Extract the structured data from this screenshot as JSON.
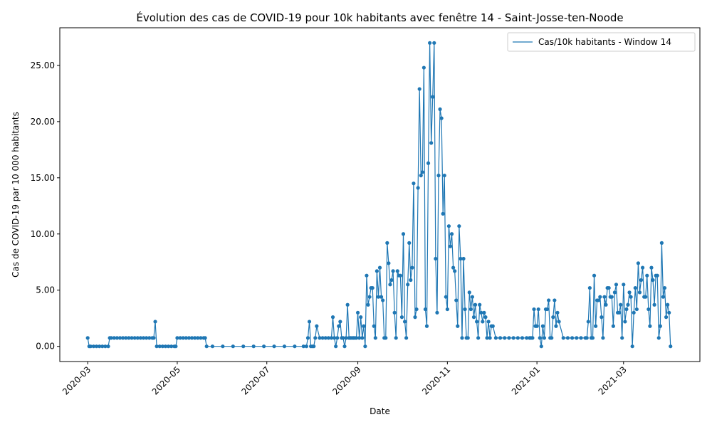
{
  "chart_data": {
    "type": "line",
    "title": "Évolution des cas de COVID-19 pour 10k habitants avec fenêtre 14 - Saint-Josse-ten-Noode",
    "xlabel": "Date",
    "ylabel": "Cas de COVID-19 par 10 000 habitants",
    "xlim": [
      "2020-02-11",
      "2021-04-22"
    ],
    "ylim": [
      -1.35,
      28.35
    ],
    "x_ticks": [
      "2020-03-01",
      "2020-05-01",
      "2020-07-01",
      "2020-09-01",
      "2020-11-01",
      "2021-01-01",
      "2021-03-01"
    ],
    "x_tick_labels": [
      "2020-03",
      "2020-05",
      "2020-07",
      "2020-09",
      "2020-11",
      "2021-01",
      "2021-03"
    ],
    "y_ticks": [
      0,
      5,
      10,
      15,
      20,
      25
    ],
    "y_tick_labels": [
      "0.00",
      "5.00",
      "10.00",
      "15.00",
      "20.00",
      "25.00"
    ],
    "legend_position": "top-right",
    "grid": false,
    "colors": {
      "series": "#1f77b4"
    },
    "series": [
      {
        "name": "Cas/10k habitants - Window 14",
        "x": [
          "2020-03-01",
          "2020-03-02",
          "2020-03-03",
          "2020-03-05",
          "2020-03-07",
          "2020-03-09",
          "2020-03-11",
          "2020-03-13",
          "2020-03-15",
          "2020-03-16",
          "2020-03-17",
          "2020-03-19",
          "2020-03-21",
          "2020-03-23",
          "2020-03-25",
          "2020-03-27",
          "2020-03-29",
          "2020-03-31",
          "2020-04-02",
          "2020-04-04",
          "2020-04-06",
          "2020-04-08",
          "2020-04-10",
          "2020-04-12",
          "2020-04-14",
          "2020-04-15",
          "2020-04-16",
          "2020-04-17",
          "2020-04-19",
          "2020-04-21",
          "2020-04-23",
          "2020-04-25",
          "2020-04-27",
          "2020-04-29",
          "2020-04-30",
          "2020-05-01",
          "2020-05-03",
          "2020-05-05",
          "2020-05-07",
          "2020-05-09",
          "2020-05-11",
          "2020-05-13",
          "2020-05-15",
          "2020-05-17",
          "2020-05-19",
          "2020-05-20",
          "2020-05-21",
          "2020-05-25",
          "2020-06-01",
          "2020-06-08",
          "2020-06-15",
          "2020-06-22",
          "2020-06-29",
          "2020-07-06",
          "2020-07-13",
          "2020-07-20",
          "2020-07-26",
          "2020-07-28",
          "2020-07-29",
          "2020-07-30",
          "2020-07-31",
          "2020-08-01",
          "2020-08-02",
          "2020-08-03",
          "2020-08-04",
          "2020-08-06",
          "2020-08-08",
          "2020-08-10",
          "2020-08-12",
          "2020-08-14",
          "2020-08-15",
          "2020-08-16",
          "2020-08-17",
          "2020-08-18",
          "2020-08-19",
          "2020-08-20",
          "2020-08-21",
          "2020-08-22",
          "2020-08-23",
          "2020-08-24",
          "2020-08-25",
          "2020-08-26",
          "2020-08-27",
          "2020-08-28",
          "2020-08-29",
          "2020-08-30",
          "2020-08-31",
          "2020-09-01",
          "2020-09-02",
          "2020-09-03",
          "2020-09-04",
          "2020-09-05",
          "2020-09-06",
          "2020-09-07",
          "2020-09-08",
          "2020-09-09",
          "2020-09-10",
          "2020-09-11",
          "2020-09-12",
          "2020-09-13",
          "2020-09-14",
          "2020-09-15",
          "2020-09-16",
          "2020-09-17",
          "2020-09-18",
          "2020-09-19",
          "2020-09-20",
          "2020-09-21",
          "2020-09-22",
          "2020-09-23",
          "2020-09-24",
          "2020-09-25",
          "2020-09-26",
          "2020-09-27",
          "2020-09-28",
          "2020-09-29",
          "2020-09-30",
          "2020-10-01",
          "2020-10-02",
          "2020-10-03",
          "2020-10-04",
          "2020-10-05",
          "2020-10-06",
          "2020-10-07",
          "2020-10-08",
          "2020-10-09",
          "2020-10-10",
          "2020-10-11",
          "2020-10-12",
          "2020-10-13",
          "2020-10-14",
          "2020-10-15",
          "2020-10-16",
          "2020-10-17",
          "2020-10-18",
          "2020-10-19",
          "2020-10-20",
          "2020-10-21",
          "2020-10-22",
          "2020-10-23",
          "2020-10-24",
          "2020-10-25",
          "2020-10-26",
          "2020-10-27",
          "2020-10-28",
          "2020-10-29",
          "2020-10-30",
          "2020-10-31",
          "2020-11-01",
          "2020-11-02",
          "2020-11-03",
          "2020-11-04",
          "2020-11-05",
          "2020-11-06",
          "2020-11-07",
          "2020-11-08",
          "2020-11-09",
          "2020-11-10",
          "2020-11-11",
          "2020-11-12",
          "2020-11-13",
          "2020-11-14",
          "2020-11-15",
          "2020-11-16",
          "2020-11-17",
          "2020-11-18",
          "2020-11-19",
          "2020-11-20",
          "2020-11-21",
          "2020-11-22",
          "2020-11-23",
          "2020-11-24",
          "2020-11-25",
          "2020-11-26",
          "2020-11-27",
          "2020-11-28",
          "2020-11-29",
          "2020-11-30",
          "2020-12-01",
          "2020-12-02",
          "2020-12-04",
          "2020-12-07",
          "2020-12-10",
          "2020-12-13",
          "2020-12-16",
          "2020-12-19",
          "2020-12-22",
          "2020-12-25",
          "2020-12-27",
          "2020-12-28",
          "2020-12-29",
          "2020-12-30",
          "2020-12-31",
          "2021-01-01",
          "2021-01-02",
          "2021-01-03",
          "2021-01-04",
          "2021-01-05",
          "2021-01-06",
          "2021-01-07",
          "2021-01-08",
          "2021-01-09",
          "2021-01-10",
          "2021-01-11",
          "2021-01-12",
          "2021-01-13",
          "2021-01-14",
          "2021-01-15",
          "2021-01-16",
          "2021-01-19",
          "2021-01-22",
          "2021-01-25",
          "2021-01-28",
          "2021-01-31",
          "2021-02-03",
          "2021-02-04",
          "2021-02-05",
          "2021-02-06",
          "2021-02-07",
          "2021-02-08",
          "2021-02-09",
          "2021-02-10",
          "2021-02-11",
          "2021-02-12",
          "2021-02-13",
          "2021-02-14",
          "2021-02-15",
          "2021-02-16",
          "2021-02-17",
          "2021-02-18",
          "2021-02-19",
          "2021-02-20",
          "2021-02-21",
          "2021-02-22",
          "2021-02-23",
          "2021-02-24",
          "2021-02-25",
          "2021-02-26",
          "2021-02-27",
          "2021-02-28",
          "2021-03-01",
          "2021-03-02",
          "2021-03-03",
          "2021-03-04",
          "2021-03-05",
          "2021-03-06",
          "2021-03-07",
          "2021-03-08",
          "2021-03-09",
          "2021-03-10",
          "2021-03-11",
          "2021-03-12",
          "2021-03-13",
          "2021-03-14",
          "2021-03-15",
          "2021-03-16",
          "2021-03-17",
          "2021-03-18",
          "2021-03-19",
          "2021-03-20",
          "2021-03-21",
          "2021-03-22",
          "2021-03-23",
          "2021-03-24",
          "2021-03-25",
          "2021-03-26",
          "2021-03-27",
          "2021-03-28",
          "2021-03-29",
          "2021-03-30",
          "2021-03-31",
          "2021-04-01",
          "2021-04-02"
        ],
        "values": [
          0.75,
          0,
          0,
          0,
          0,
          0,
          0,
          0,
          0,
          0.75,
          0.75,
          0.75,
          0.75,
          0.75,
          0.75,
          0.75,
          0.75,
          0.75,
          0.75,
          0.75,
          0.75,
          0.75,
          0.75,
          0.75,
          0.75,
          0.75,
          2.2,
          0,
          0,
          0,
          0,
          0,
          0,
          0,
          0,
          0.75,
          0.75,
          0.75,
          0.75,
          0.75,
          0.75,
          0.75,
          0.75,
          0.75,
          0.75,
          0.75,
          0,
          0,
          0,
          0,
          0,
          0,
          0,
          0,
          0,
          0,
          0,
          0,
          0.75,
          2.2,
          0,
          0,
          0,
          0.75,
          1.8,
          0.75,
          0.75,
          0.75,
          0.75,
          0.75,
          2.6,
          0.75,
          0,
          0.75,
          1.8,
          2.2,
          0.75,
          0.75,
          0,
          0.75,
          3.7,
          0.75,
          0.75,
          0.75,
          0.75,
          0.75,
          0.75,
          3,
          0.75,
          2.6,
          0.75,
          1.8,
          0,
          6.3,
          3.7,
          4.4,
          5.2,
          5.2,
          1.8,
          0.75,
          6.7,
          4.4,
          7,
          4.4,
          4.1,
          0.75,
          0.75,
          9.2,
          7.4,
          5.5,
          5.9,
          6.7,
          3,
          0.75,
          6.7,
          6.3,
          6.3,
          2.6,
          10,
          2.2,
          0.75,
          5.5,
          9.2,
          5.9,
          7,
          14.5,
          2.6,
          3.3,
          14.1,
          22.9,
          15.2,
          15.5,
          24.8,
          3.3,
          1.8,
          16.3,
          27,
          18.1,
          22.2,
          27,
          7.8,
          3,
          15.2,
          21.1,
          20.3,
          11.8,
          15.2,
          4.4,
          3.3,
          10.7,
          8.9,
          10,
          7,
          6.7,
          4.1,
          1.8,
          10.7,
          7.8,
          0.75,
          7.8,
          3.3,
          0.75,
          0.75,
          4.8,
          3.3,
          4.4,
          2.6,
          3.7,
          2.2,
          0.75,
          3.7,
          3,
          2.2,
          3,
          2.6,
          0.75,
          2.2,
          0.75,
          1.8,
          1.8,
          0.75,
          0.75,
          0.75,
          0.75,
          0.75,
          0.75,
          0.75,
          0.75,
          0.75,
          0.75,
          0.75,
          3.3,
          1.8,
          1.8,
          3.3,
          0.75,
          0,
          1.8,
          0.75,
          3.3,
          3.3,
          4.1,
          0.75,
          0.75,
          2.6,
          4.1,
          1.8,
          3,
          2.2,
          0.75,
          0.75,
          0.75,
          0.75,
          0.75,
          0.75,
          0.75,
          2.2,
          5.2,
          0.75,
          0.75,
          6.3,
          1.8,
          4.1,
          4.1,
          4.4,
          2.6,
          0.75,
          4.4,
          3.7,
          5.2,
          5.2,
          4.4,
          4.4,
          1.8,
          4.8,
          5.5,
          3,
          3,
          3.7,
          0.75,
          5.5,
          2.2,
          3.3,
          3.7,
          4.8,
          4.4,
          0,
          3,
          5.2,
          3.3,
          7.4,
          4.8,
          5.9,
          7,
          4.4,
          4.4,
          6.3,
          3.3,
          1.8,
          7,
          5.9,
          3.7,
          6.3,
          6.3,
          0.75,
          1.8,
          9.2,
          4.4,
          5.2,
          2.6,
          3.7,
          3,
          0
        ]
      }
    ]
  }
}
